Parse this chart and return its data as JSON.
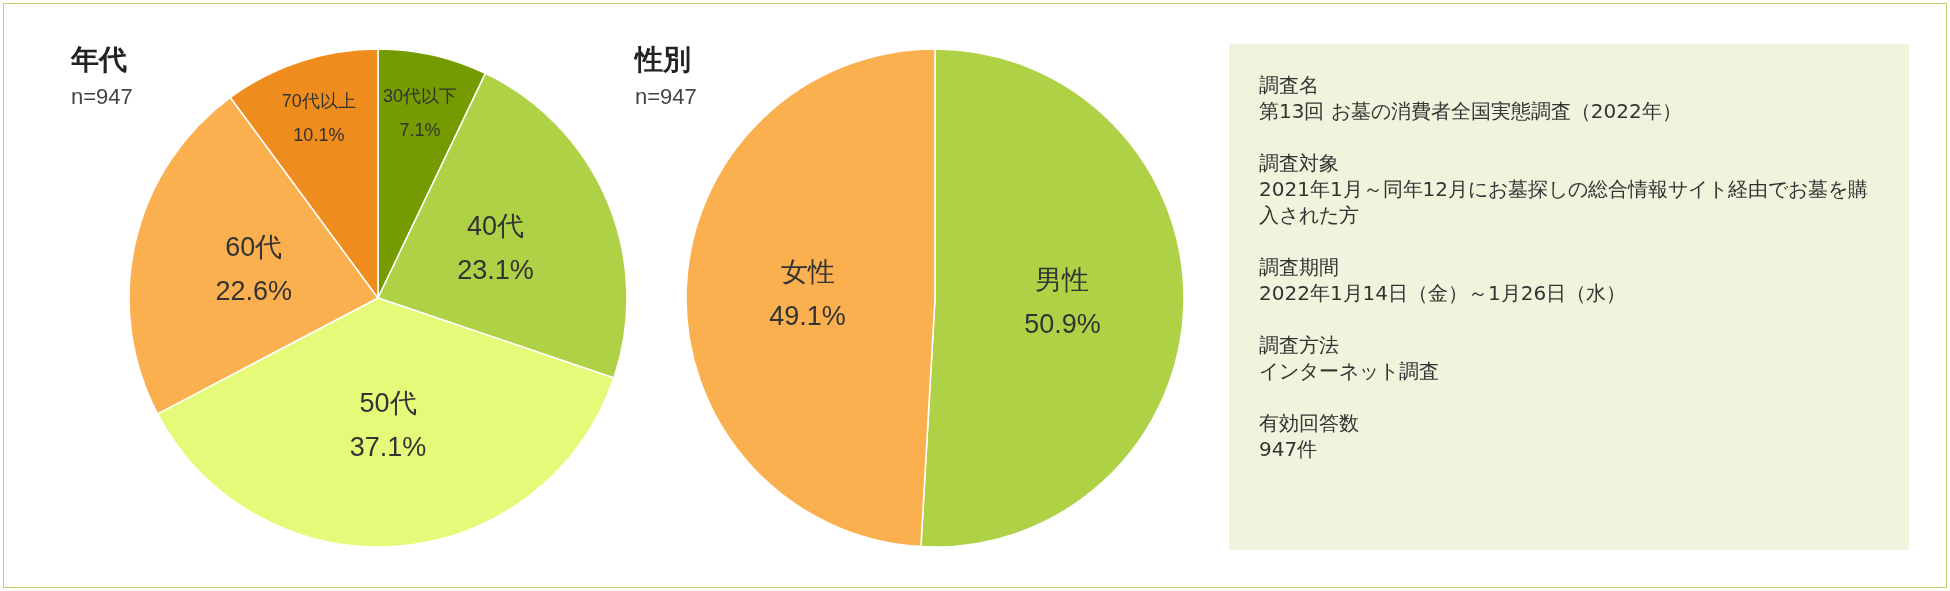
{
  "chart_data": [
    {
      "type": "pie",
      "title": "年代",
      "subtitle": "n=947",
      "categories": [
        "30代以下",
        "40代",
        "50代",
        "60代",
        "70代以上"
      ],
      "values": [
        7.1,
        23.1,
        37.1,
        22.6,
        10.1
      ],
      "colors": [
        "#749b00",
        "#afd146",
        "#e6fa7a",
        "#fbb050",
        "#ef8c1e"
      ],
      "value_labels": [
        "7.1%",
        "23.1%",
        "37.1%",
        "22.6%",
        "10.1%"
      ]
    },
    {
      "type": "pie",
      "title": "性別",
      "subtitle": "n=947",
      "categories": [
        "男性",
        "女性"
      ],
      "values": [
        50.9,
        49.1
      ],
      "colors": [
        "#afd146",
        "#fbb050"
      ],
      "value_labels": [
        "50.9%",
        "49.1%"
      ]
    },
    {
      "type": "other",
      "annotations": [
        "調査名",
        "第13回 お墓の消費者全国実態調査（2022年）",
        "調査対象",
        "2021年1月～同年12月にお墓探しの総合情報サイト経由でお墓を購入された方",
        "調査期間",
        "2022年1月14日（金）～1月26日（水）",
        "調査方法",
        "インターネット調査",
        "有効回答数",
        "947件"
      ]
    }
  ]
}
